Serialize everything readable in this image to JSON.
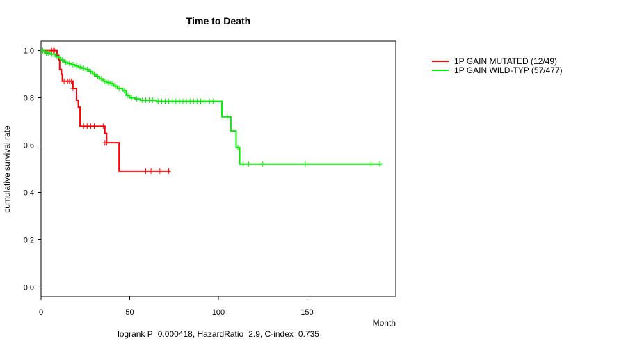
{
  "chart_data": {
    "type": "line",
    "title": "Time to Death",
    "xlabel": "Month",
    "ylabel": "cumulative survival rate",
    "xlim": [
      0,
      200
    ],
    "ylim": [
      -0.04,
      1.04
    ],
    "xticks": [
      0,
      50,
      100,
      150
    ],
    "yticks": [
      0.0,
      0.2,
      0.4,
      0.6,
      0.8,
      1.0
    ],
    "ytick_labels": [
      "0.0",
      "0.2",
      "0.4",
      "0.6",
      "0.8",
      "1.0"
    ],
    "footnote": "logrank P=0.000418, HazardRatio=2.9, C-index=0.735",
    "legend_position": "top-right outside plot",
    "series": [
      {
        "name": "1P GAIN MUTATED (12/49)",
        "color": "#ff0000",
        "steps": [
          [
            0,
            1.0
          ],
          [
            9,
            0.98
          ],
          [
            10,
            0.96
          ],
          [
            10.5,
            0.92
          ],
          [
            11.5,
            0.9
          ],
          [
            12,
            0.87
          ],
          [
            18,
            0.84
          ],
          [
            20,
            0.79
          ],
          [
            21,
            0.76
          ],
          [
            22,
            0.68
          ],
          [
            36,
            0.65
          ],
          [
            37,
            0.61
          ],
          [
            44,
            0.49
          ],
          [
            73,
            0.49
          ]
        ],
        "censors": [
          [
            6,
            1.0
          ],
          [
            7,
            1.0
          ],
          [
            7.5,
            1.0
          ],
          [
            13,
            0.87
          ],
          [
            15,
            0.87
          ],
          [
            16,
            0.87
          ],
          [
            17,
            0.87
          ],
          [
            18,
            0.84
          ],
          [
            24,
            0.68
          ],
          [
            26,
            0.68
          ],
          [
            28,
            0.68
          ],
          [
            30,
            0.68
          ],
          [
            35,
            0.68
          ],
          [
            36,
            0.61
          ],
          [
            37,
            0.61
          ],
          [
            59,
            0.49
          ],
          [
            62,
            0.49
          ],
          [
            67,
            0.49
          ],
          [
            72,
            0.49
          ]
        ]
      },
      {
        "name": "1P GAIN WILD-TYP (57/477)",
        "color": "#00ee00",
        "steps": [
          [
            0,
            1.0
          ],
          [
            2,
            0.99
          ],
          [
            5,
            0.985
          ],
          [
            8,
            0.975
          ],
          [
            10,
            0.97
          ],
          [
            11,
            0.96
          ],
          [
            13,
            0.95
          ],
          [
            15,
            0.945
          ],
          [
            17,
            0.94
          ],
          [
            19,
            0.935
          ],
          [
            21,
            0.93
          ],
          [
            23,
            0.925
          ],
          [
            25,
            0.92
          ],
          [
            27,
            0.91
          ],
          [
            29,
            0.9
          ],
          [
            31,
            0.89
          ],
          [
            33,
            0.88
          ],
          [
            35,
            0.87
          ],
          [
            37,
            0.865
          ],
          [
            39,
            0.86
          ],
          [
            41,
            0.85
          ],
          [
            43,
            0.84
          ],
          [
            46,
            0.83
          ],
          [
            48,
            0.81
          ],
          [
            50,
            0.8
          ],
          [
            53,
            0.795
          ],
          [
            56,
            0.79
          ],
          [
            65,
            0.785
          ],
          [
            102,
            0.72
          ],
          [
            107,
            0.66
          ],
          [
            110,
            0.59
          ],
          [
            112,
            0.52
          ],
          [
            192,
            0.52
          ]
        ],
        "censors": [
          [
            1,
            1.0
          ],
          [
            3,
            0.99
          ],
          [
            4,
            0.99
          ],
          [
            6,
            0.985
          ],
          [
            9,
            0.975
          ],
          [
            12,
            0.96
          ],
          [
            14,
            0.95
          ],
          [
            16,
            0.945
          ],
          [
            18,
            0.94
          ],
          [
            20,
            0.935
          ],
          [
            22,
            0.93
          ],
          [
            24,
            0.925
          ],
          [
            26,
            0.92
          ],
          [
            28,
            0.91
          ],
          [
            30,
            0.9
          ],
          [
            32,
            0.89
          ],
          [
            34,
            0.88
          ],
          [
            36,
            0.87
          ],
          [
            38,
            0.865
          ],
          [
            40,
            0.86
          ],
          [
            42,
            0.85
          ],
          [
            44,
            0.84
          ],
          [
            47,
            0.83
          ],
          [
            49,
            0.81
          ],
          [
            51,
            0.8
          ],
          [
            54,
            0.795
          ],
          [
            57,
            0.79
          ],
          [
            59,
            0.79
          ],
          [
            61,
            0.79
          ],
          [
            63,
            0.79
          ],
          [
            66,
            0.785
          ],
          [
            68,
            0.785
          ],
          [
            70,
            0.785
          ],
          [
            72,
            0.785
          ],
          [
            74,
            0.785
          ],
          [
            76,
            0.785
          ],
          [
            78,
            0.785
          ],
          [
            80,
            0.785
          ],
          [
            82,
            0.785
          ],
          [
            84,
            0.785
          ],
          [
            86,
            0.785
          ],
          [
            88,
            0.785
          ],
          [
            90,
            0.785
          ],
          [
            92,
            0.785
          ],
          [
            95,
            0.785
          ],
          [
            97,
            0.785
          ],
          [
            105,
            0.72
          ],
          [
            111,
            0.59
          ],
          [
            114,
            0.52
          ],
          [
            117,
            0.52
          ],
          [
            125,
            0.52
          ],
          [
            149,
            0.52
          ],
          [
            186,
            0.52
          ],
          [
            191,
            0.52
          ]
        ]
      }
    ]
  }
}
